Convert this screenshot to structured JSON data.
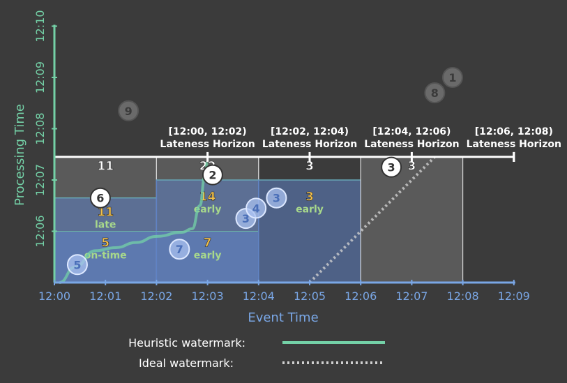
{
  "colors": {
    "background": "#3b3b3b",
    "event_axis": "#7aa7e6",
    "processing_axis": "#74d1a7",
    "window_fill": "#5f82c4",
    "window_border": "#d7d7d7",
    "pane_gray": "#5a5a5a",
    "heuristic": "#74d1a7",
    "ideal": "#cfcfcf",
    "accent_yellow": "#f2c04a",
    "accent_green": "#a8d98b",
    "white": "#ffffff"
  },
  "chart_data": {
    "type": "diagram",
    "xlabel": "Event Time",
    "ylabel": "Processing Time",
    "x_ticks": [
      "12:00",
      "12:01",
      "12:02",
      "12:03",
      "12:04",
      "12:05",
      "12:06",
      "12:07",
      "12:08",
      "12:09"
    ],
    "y_ticks": [
      "12:06",
      "12:07",
      "12:08",
      "12:09",
      "12:10"
    ],
    "x_range": [
      0,
      9
    ],
    "y_range": [
      5,
      10
    ],
    "lateness_horizon_y": 7.45,
    "windows": [
      {
        "label": "[12:00, 12:02)",
        "caption": "Lateness Horizon",
        "x0": 0,
        "x1": 2,
        "tick_x": 3,
        "top_y": 7.45,
        "fill_to": 6.65,
        "gray": true,
        "panes": [
          {
            "value": "5",
            "tag": "on-time",
            "x": 1,
            "y": 5.7,
            "value_color": "yellow"
          },
          {
            "value": "11",
            "tag": "late",
            "x": 1,
            "y": 6.3,
            "value_color": "yellow"
          },
          {
            "value": "11",
            "tag": "",
            "x": 1,
            "y": 7.2,
            "value_color": "white"
          }
        ],
        "fill_steps": [
          6.0,
          6.65
        ]
      },
      {
        "label": "[12:02, 12:04)",
        "caption": "Lateness Horizon",
        "x0": 2,
        "x1": 4,
        "tick_x": 5,
        "top_y": 7.45,
        "fill_to": 7.0,
        "gray": true,
        "panes": [
          {
            "value": "7",
            "tag": "early",
            "x": 3,
            "y": 5.7,
            "value_color": "yellow"
          },
          {
            "value": "14",
            "tag": "early",
            "x": 3,
            "y": 6.6,
            "value_color": "yellow"
          },
          {
            "value": "22",
            "tag": "",
            "x": 3,
            "y": 7.2,
            "value_color": "white"
          }
        ],
        "fill_steps": [
          6.0,
          7.0
        ]
      },
      {
        "label": "[12:04, 12:06)",
        "caption": "Lateness Horizon",
        "x0": 4,
        "x1": 6,
        "tick_x": 7,
        "top_y": 7.45,
        "fill_to": 7.0,
        "gray": false,
        "panes": [
          {
            "value": "3",
            "tag": "early",
            "x": 5,
            "y": 6.6,
            "value_color": "yellow"
          },
          {
            "value": "3",
            "tag": "",
            "x": 5,
            "y": 7.2,
            "value_color": "white"
          }
        ],
        "fill_steps": [
          7.0
        ]
      },
      {
        "label": "[12:06, 12:08)",
        "caption": "Lateness Horizon",
        "x0": 6,
        "x1": 8,
        "tick_x": 9,
        "top_y": 7.45,
        "fill_to": 7.45,
        "gray": true,
        "panes": [
          {
            "value": "3",
            "tag": "",
            "x": 7,
            "y": 7.2,
            "value_color": "white"
          }
        ],
        "fill_steps": []
      }
    ],
    "points": [
      {
        "value": "5",
        "x": 0.45,
        "y": 5.35,
        "state": "in"
      },
      {
        "value": "6",
        "x": 0.9,
        "y": 6.65,
        "state": "bright"
      },
      {
        "value": "7",
        "x": 2.45,
        "y": 5.65,
        "state": "in"
      },
      {
        "value": "2",
        "x": 3.1,
        "y": 7.1,
        "state": "bright"
      },
      {
        "value": "3",
        "x": 3.75,
        "y": 6.25,
        "state": "in"
      },
      {
        "value": "4",
        "x": 3.95,
        "y": 6.45,
        "state": "in"
      },
      {
        "value": "3",
        "x": 4.35,
        "y": 6.65,
        "state": "in"
      },
      {
        "value": "3",
        "x": 6.6,
        "y": 7.25,
        "state": "bright"
      },
      {
        "value": "9",
        "x": 1.45,
        "y": 8.35,
        "state": "dropped"
      },
      {
        "value": "8",
        "x": 7.45,
        "y": 8.7,
        "state": "dropped"
      },
      {
        "value": "1",
        "x": 7.8,
        "y": 9.0,
        "state": "dropped"
      }
    ],
    "heuristic_watermark": [
      [
        0.1,
        5.0
      ],
      [
        0.4,
        5.3
      ],
      [
        0.8,
        5.62
      ],
      [
        1.2,
        5.68
      ],
      [
        1.6,
        5.78
      ],
      [
        2.0,
        5.9
      ],
      [
        2.5,
        5.98
      ],
      [
        2.7,
        6.05
      ],
      [
        2.85,
        6.5
      ],
      [
        2.95,
        7.1
      ],
      [
        3.0,
        7.35
      ]
    ],
    "ideal_watermark": [
      [
        5.0,
        5.0
      ],
      [
        7.45,
        7.45
      ]
    ]
  },
  "legend": {
    "heuristic_label": "Heuristic watermark:",
    "ideal_label": "Ideal watermark:"
  }
}
